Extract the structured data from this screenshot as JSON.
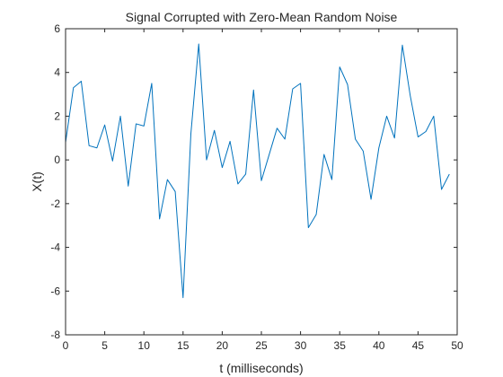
{
  "chart_data": {
    "type": "line",
    "title": "Signal Corrupted with Zero-Mean Random Noise",
    "xlabel": "t (milliseconds)",
    "ylabel": "X(t)",
    "xlim": [
      0,
      50
    ],
    "ylim": [
      -8,
      6
    ],
    "xticks": [
      "0",
      "5",
      "10",
      "15",
      "20",
      "25",
      "30",
      "35",
      "40",
      "45",
      "50"
    ],
    "yticks": [
      "-8",
      "-6",
      "-4",
      "-2",
      "0",
      "2",
      "4",
      "6"
    ],
    "grid": false,
    "line_color": "#0072BD",
    "series": [
      {
        "x": [
          0,
          1,
          2,
          3,
          4,
          5,
          6,
          7,
          8,
          9,
          10,
          11,
          12,
          13,
          14,
          15,
          16,
          17,
          18,
          19,
          20,
          21,
          22,
          23,
          24,
          25,
          26,
          27,
          28,
          29,
          30,
          31,
          32,
          33,
          34,
          35,
          36,
          37,
          38,
          39,
          40,
          41,
          42,
          43,
          44,
          45,
          46,
          47,
          48,
          49
        ],
        "values": [
          0.8,
          3.3,
          3.6,
          0.65,
          0.55,
          1.6,
          -0.05,
          2.0,
          -1.2,
          1.65,
          1.55,
          3.5,
          -2.7,
          -0.9,
          -1.45,
          -6.3,
          1.2,
          5.3,
          0.0,
          1.35,
          -0.35,
          0.85,
          -1.1,
          -0.65,
          3.2,
          -0.95,
          0.25,
          1.45,
          0.95,
          3.25,
          3.5,
          -3.1,
          -2.5,
          0.25,
          -0.9,
          4.25,
          3.45,
          0.95,
          0.4,
          -1.8,
          0.55,
          2.0,
          1.0,
          5.25,
          2.95,
          1.05,
          1.3,
          2.0,
          -1.35,
          -0.65
        ]
      }
    ]
  }
}
